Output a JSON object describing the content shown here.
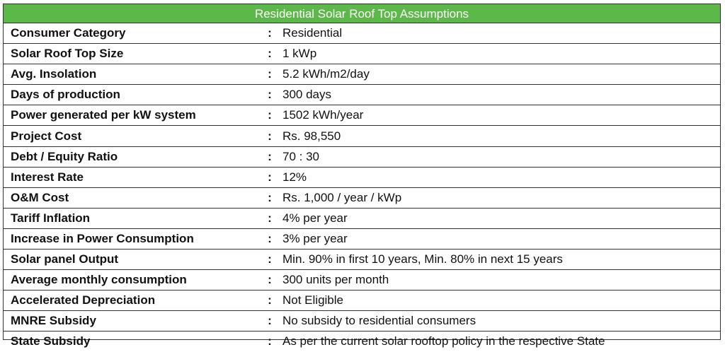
{
  "title": "Residential Solar Roof Top Assumptions",
  "separator": ":",
  "colors": {
    "header_background": "#5db84a",
    "header_text": "#ffffff",
    "border": "#333333"
  },
  "rows": [
    {
      "label": "Consumer Category",
      "value": "Residential"
    },
    {
      "label": "Solar Roof Top Size",
      "value": "1 kWp"
    },
    {
      "label": "Avg. Insolation",
      "value": "5.2 kWh/m2/day"
    },
    {
      "label": "Days of production",
      "value": "300 days"
    },
    {
      "label": "Power generated per kW system",
      "value": "1502 kWh/year"
    },
    {
      "label": "Project Cost",
      "value": "Rs. 98,550"
    },
    {
      "label": "Debt / Equity Ratio",
      "value": "70 : 30"
    },
    {
      "label": "Interest Rate",
      "value": "12%"
    },
    {
      "label": "O&M Cost",
      "value": "Rs. 1,000 / year / kWp"
    },
    {
      "label": "Tariff Inflation",
      "value": "4% per year"
    },
    {
      "label": "Increase in Power Consumption",
      "value": "3% per year"
    },
    {
      "label": "Solar panel Output",
      "value": "Min. 90% in first 10 years, Min. 80% in next 15 years"
    },
    {
      "label": "Average monthly consumption",
      "value": "300 units per month"
    },
    {
      "label": "Accelerated Depreciation",
      "value": "Not Eligible"
    },
    {
      "label": "MNRE Subsidy",
      "value": "No subsidy to residential consumers"
    },
    {
      "label": "State Subsidy",
      "value": "As per the current solar rooftop policy in the respective State"
    }
  ]
}
